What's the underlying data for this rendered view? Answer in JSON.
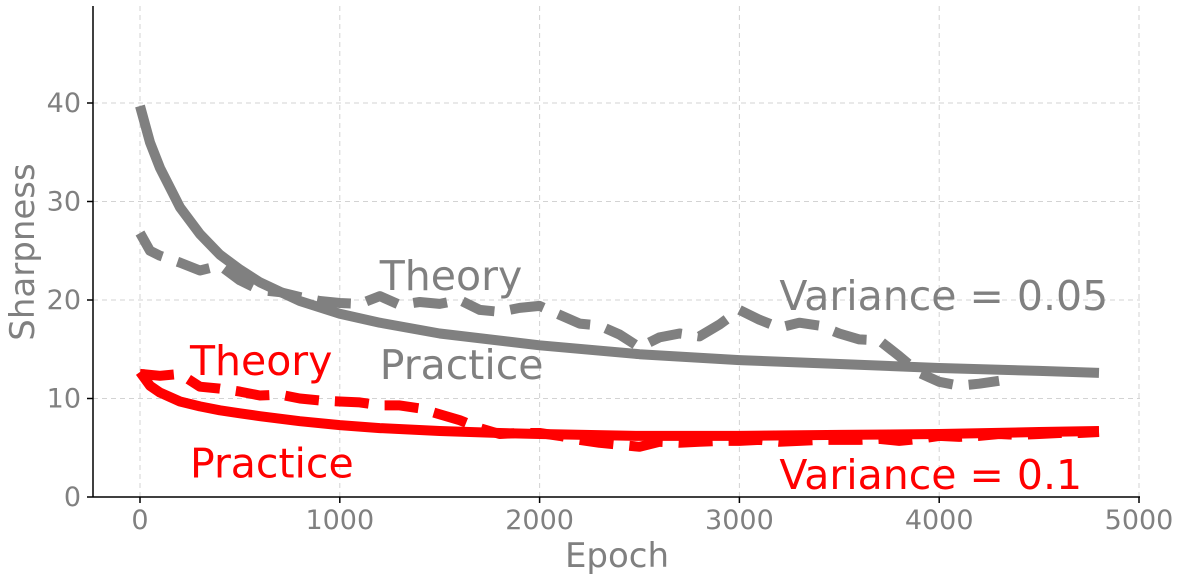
{
  "chart_data": {
    "type": "line",
    "xlabel": "Epoch",
    "ylabel": "Sharpness",
    "xlim": [
      -230,
      5000
    ],
    "ylim": [
      0,
      50
    ],
    "x_ticks": [
      0,
      1000,
      2000,
      3000,
      4000,
      5000
    ],
    "y_ticks": [
      0,
      10,
      20,
      30,
      40
    ],
    "grid": true,
    "legend": "none",
    "colors": {
      "gray": "#808080",
      "red": "#ff0000"
    },
    "series": [
      {
        "style": "solid",
        "color": "#808080",
        "x": [
          0,
          50,
          100,
          200,
          300,
          400,
          500,
          600,
          800,
          1000,
          1200,
          1500,
          2000,
          2500,
          3000,
          3500,
          4000,
          4500,
          4800
        ],
        "y": [
          39.7,
          36.0,
          33.4,
          29.4,
          26.7,
          24.6,
          23.1,
          21.8,
          19.9,
          18.6,
          17.7,
          16.6,
          15.4,
          14.5,
          13.9,
          13.5,
          13.1,
          12.8,
          12.6
        ]
      },
      {
        "style": "dashed",
        "color": "#808080",
        "x": [
          0,
          50,
          100,
          200,
          300,
          400,
          500,
          600,
          700,
          800,
          900,
          1000,
          1100,
          1200,
          1300,
          1400,
          1500,
          1600,
          1700,
          1800,
          1900,
          2000,
          2100,
          2200,
          2300,
          2400,
          2500,
          2600,
          2700,
          2800,
          2900,
          3000,
          3100,
          3200,
          3300,
          3400,
          3500,
          3600,
          3700,
          3800,
          3900,
          4000,
          4100,
          4200,
          4300
        ],
        "y": [
          26.8,
          25.0,
          24.5,
          23.8,
          23.0,
          23.5,
          22.0,
          21.0,
          20.8,
          20.3,
          19.9,
          19.7,
          19.6,
          20.4,
          19.5,
          19.8,
          19.6,
          20.0,
          19.0,
          18.8,
          19.2,
          19.4,
          18.5,
          17.6,
          17.4,
          16.5,
          15.2,
          16.2,
          16.6,
          16.3,
          17.5,
          19.0,
          18.0,
          17.2,
          17.7,
          17.4,
          16.6,
          16.0,
          15.9,
          14.3,
          12.6,
          11.7,
          11.3,
          11.5,
          11.8
        ]
      },
      {
        "style": "solid",
        "color": "#ff0000",
        "x": [
          0,
          50,
          100,
          200,
          300,
          400,
          500,
          600,
          800,
          1000,
          1200,
          1500,
          1800,
          2000,
          2500,
          3000,
          3500,
          4000,
          4500,
          4800
        ],
        "y": [
          12.7,
          11.3,
          10.6,
          9.7,
          9.2,
          8.8,
          8.5,
          8.2,
          7.7,
          7.3,
          7.0,
          6.7,
          6.5,
          6.4,
          6.2,
          6.2,
          6.3,
          6.4,
          6.6,
          6.7
        ]
      },
      {
        "style": "dashed",
        "color": "#ff0000",
        "x": [
          0,
          100,
          200,
          300,
          400,
          500,
          600,
          700,
          800,
          900,
          1000,
          1100,
          1200,
          1300,
          1400,
          1500,
          1600,
          1700,
          1800,
          1900,
          2000,
          2100,
          2200,
          2300,
          2400,
          2500,
          2600,
          2700,
          2800,
          2900,
          3000,
          3100,
          3200,
          3300,
          3400,
          3500,
          3600,
          3700,
          3800,
          3900,
          4000,
          4100,
          4200,
          4300,
          4400,
          4500,
          4600,
          4700,
          4800
        ],
        "y": [
          12.5,
          12.3,
          12.5,
          11.2,
          11.0,
          10.7,
          10.3,
          10.4,
          10.0,
          9.8,
          9.7,
          9.6,
          9.3,
          9.3,
          9.0,
          8.4,
          7.8,
          7.0,
          6.4,
          6.5,
          6.5,
          6.2,
          5.8,
          5.5,
          5.3,
          5.1,
          5.6,
          5.5,
          5.6,
          5.7,
          5.7,
          5.8,
          5.6,
          5.7,
          5.8,
          5.8,
          5.8,
          5.9,
          5.7,
          5.9,
          6.2,
          6.1,
          6.2,
          6.4,
          6.3,
          6.4,
          6.5,
          6.5,
          6.6
        ]
      }
    ],
    "annotations": [
      {
        "text": "Theory",
        "x": 1200,
        "y": 21,
        "color": "#808080"
      },
      {
        "text": "Practice",
        "x": 1200,
        "y": 12,
        "color": "#808080"
      },
      {
        "text": "Variance = 0.05",
        "x": 3200,
        "y": 19,
        "color": "#808080"
      },
      {
        "text": "Theory",
        "x": 250,
        "y": 12.4,
        "color": "#ff0000"
      },
      {
        "text": "Practice",
        "x": 250,
        "y": 2,
        "color": "#ff0000"
      },
      {
        "text": "Variance = 0.1",
        "x": 3200,
        "y": 0.8,
        "color": "#ff0000"
      }
    ]
  }
}
